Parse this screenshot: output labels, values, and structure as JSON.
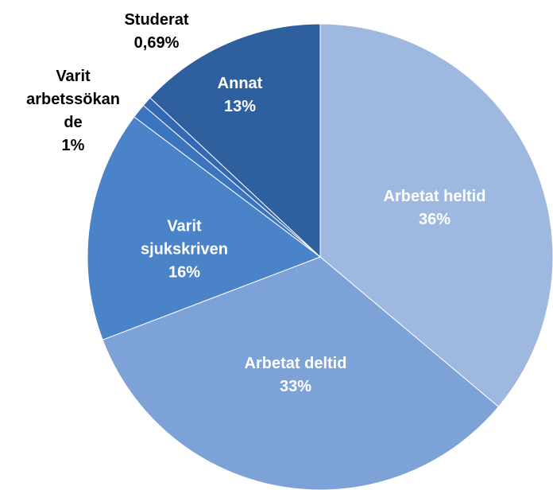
{
  "chart_data": {
    "type": "pie",
    "categories": [
      "Arbetat heltid",
      "Arbetat deltid",
      "Varit sjukskriven",
      "Varit arbetssökande",
      "Studerat",
      "Annat"
    ],
    "values": [
      36,
      33,
      16,
      1,
      0.69,
      13
    ],
    "value_labels": [
      "36%",
      "33%",
      "16%",
      "1%",
      "0,69%",
      "13%"
    ],
    "colors": [
      "#9fb8df",
      "#7da2d7",
      "#4b83c9",
      "#3b75c0",
      "#3269b2",
      "#2e5f9f"
    ]
  }
}
